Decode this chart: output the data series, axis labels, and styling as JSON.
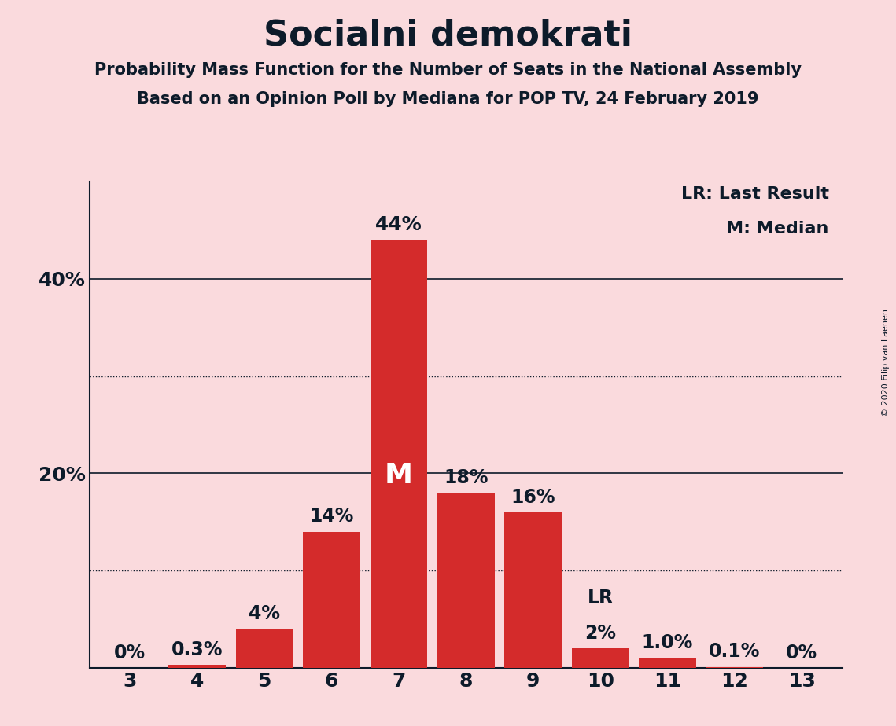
{
  "title": "Socialni demokrati",
  "subtitle1": "Probability Mass Function for the Number of Seats in the National Assembly",
  "subtitle2": "Based on an Opinion Poll by Mediana for POP TV, 24 February 2019",
  "copyright": "© 2020 Filip van Laenen",
  "legend_lr": "LR: Last Result",
  "legend_m": "M: Median",
  "background_color": "#FADADD",
  "bar_color": "#D42B2B",
  "categories": [
    3,
    4,
    5,
    6,
    7,
    8,
    9,
    10,
    11,
    12,
    13
  ],
  "values": [
    0.0,
    0.3,
    4.0,
    14.0,
    44.0,
    18.0,
    16.0,
    2.0,
    1.0,
    0.1,
    0.0
  ],
  "labels": [
    "0%",
    "0.3%",
    "4%",
    "14%",
    "44%",
    "18%",
    "16%",
    "2%",
    "1.0%",
    "0.1%",
    "0%"
  ],
  "median_bar": 7,
  "lr_bar": 10,
  "ylim": [
    0,
    50
  ],
  "solid_gridlines": [
    20,
    40
  ],
  "dotted_gridlines": [
    10,
    30
  ],
  "title_fontsize": 32,
  "subtitle_fontsize": 15,
  "label_fontsize": 15,
  "tick_fontsize": 18,
  "text_color": "#0D1B2A"
}
